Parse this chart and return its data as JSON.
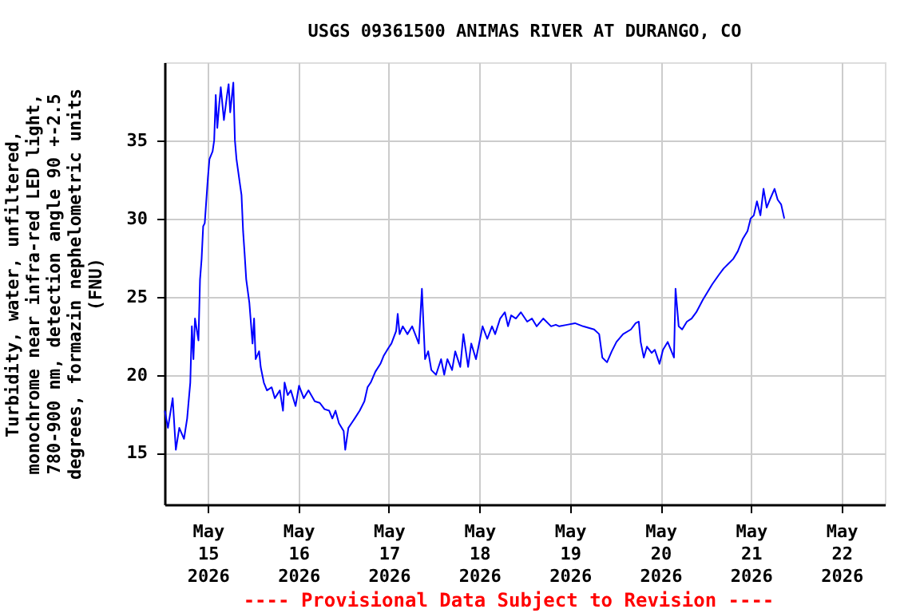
{
  "chart_data": {
    "type": "line",
    "title": "USGS 09361500 ANIMAS RIVER AT DURANGO, CO",
    "ylabel": "Turbidity, water, unfiltered,\nmonochrome near infra-red LED light,\n780-900 nm, detection angle 90 +-2.5\ndegrees, formazin nephelometric units\n(FNU)",
    "annotations": [
      "---- Provisional Data Subject to Revision ----"
    ],
    "x": [
      "2026-05-14T12:35",
      "2026-05-14T13:25",
      "2026-05-14T14:40",
      "2026-05-14T15:30",
      "2026-05-14T16:25",
      "2026-05-14T17:40",
      "2026-05-14T18:30",
      "2026-05-14T19:20",
      "2026-05-14T19:45",
      "2026-05-14T20:10",
      "2026-05-14T20:35",
      "2026-05-14T21:30",
      "2026-05-14T21:55",
      "2026-05-14T22:20",
      "2026-05-14T22:45",
      "2026-05-14T23:10",
      "2026-05-15T00:00",
      "2026-05-15T00:25",
      "2026-05-15T01:15",
      "2026-05-15T01:40",
      "2026-05-15T02:05",
      "2026-05-15T02:30",
      "2026-05-15T03:00",
      "2026-05-15T03:25",
      "2026-05-15T04:15",
      "2026-05-15T05:05",
      "2026-05-15T05:30",
      "2026-05-15T05:55",
      "2026-05-15T06:45",
      "2026-05-15T07:10",
      "2026-05-15T07:35",
      "2026-05-15T08:30",
      "2026-05-15T08:55",
      "2026-05-15T09:20",
      "2026-05-15T09:45",
      "2026-05-15T10:10",
      "2026-05-15T11:00",
      "2026-05-15T11:50",
      "2026-05-15T12:15",
      "2026-05-15T12:40",
      "2026-05-15T13:35",
      "2026-05-15T14:00",
      "2026-05-15T14:50",
      "2026-05-15T15:40",
      "2026-05-15T16:55",
      "2026-05-15T17:45",
      "2026-05-15T19:05",
      "2026-05-15T19:55",
      "2026-05-15T20:20",
      "2026-05-15T21:10",
      "2026-05-15T22:00",
      "2026-05-15T23:15",
      "2026-05-16T00:10",
      "2026-05-16T01:25",
      "2026-05-16T02:40",
      "2026-05-16T04:20",
      "2026-05-16T05:40",
      "2026-05-16T06:55",
      "2026-05-16T08:10",
      "2026-05-16T09:00",
      "2026-05-16T09:50",
      "2026-05-16T10:45",
      "2026-05-16T12:00",
      "2026-05-16T12:25",
      "2026-05-16T13:15",
      "2026-05-16T14:05",
      "2026-05-16T14:55",
      "2026-05-16T16:15",
      "2026-05-16T17:30",
      "2026-05-16T18:20",
      "2026-05-16T19:10",
      "2026-05-16T20:25",
      "2026-05-16T21:45",
      "2026-05-16T22:35",
      "2026-05-16T23:50",
      "2026-05-17T00:40",
      "2026-05-17T01:55",
      "2026-05-17T02:20",
      "2026-05-17T02:50",
      "2026-05-17T03:40",
      "2026-05-17T04:55",
      "2026-05-17T06:10",
      "2026-05-17T07:55",
      "2026-05-17T08:45",
      "2026-05-17T09:35",
      "2026-05-17T10:25",
      "2026-05-17T11:15",
      "2026-05-17T12:30",
      "2026-05-17T13:50",
      "2026-05-17T14:40",
      "2026-05-17T15:30",
      "2026-05-17T16:45",
      "2026-05-17T17:35",
      "2026-05-17T18:55",
      "2026-05-17T19:45",
      "2026-05-17T21:00",
      "2026-05-17T21:50",
      "2026-05-17T23:05",
      "2026-05-17T23:55",
      "2026-05-18T00:50",
      "2026-05-18T02:05",
      "2026-05-18T03:20",
      "2026-05-18T04:10",
      "2026-05-18T05:30",
      "2026-05-18T06:45",
      "2026-05-18T07:35",
      "2026-05-18T08:25",
      "2026-05-18T09:40",
      "2026-05-18T11:00",
      "2026-05-18T12:40",
      "2026-05-18T13:55",
      "2026-05-18T15:10",
      "2026-05-18T16:55",
      "2026-05-18T19:00",
      "2026-05-18T20:15",
      "2026-05-18T21:10",
      "2026-05-18T23:15",
      "2026-05-19T01:20",
      "2026-05-19T03:30",
      "2026-05-19T06:25",
      "2026-05-19T07:45",
      "2026-05-19T08:35",
      "2026-05-19T09:50",
      "2026-05-19T11:05",
      "2026-05-19T12:20",
      "2026-05-19T14:05",
      "2026-05-19T16:10",
      "2026-05-19T17:25",
      "2026-05-19T18:15",
      "2026-05-19T18:45",
      "2026-05-19T19:35",
      "2026-05-19T20:25",
      "2026-05-19T21:40",
      "2026-05-19T22:30",
      "2026-05-19T23:45",
      "2026-05-20T00:40",
      "2026-05-20T01:55",
      "2026-05-20T02:45",
      "2026-05-20T03:35",
      "2026-05-20T04:00",
      "2026-05-20T04:50",
      "2026-05-20T05:45",
      "2026-05-20T07:00",
      "2026-05-20T08:15",
      "2026-05-20T09:30",
      "2026-05-20T11:15",
      "2026-05-20T12:30",
      "2026-05-20T13:45",
      "2026-05-20T15:30",
      "2026-05-20T16:45",
      "2026-05-20T18:00",
      "2026-05-20T19:15",
      "2026-05-20T20:30",
      "2026-05-20T21:50",
      "2026-05-20T23:05",
      "2026-05-20T23:55",
      "2026-05-21T00:45",
      "2026-05-21T01:35",
      "2026-05-21T02:30",
      "2026-05-21T03:20",
      "2026-05-21T04:10",
      "2026-05-21T05:00",
      "2026-05-21T06:15",
      "2026-05-21T07:05",
      "2026-05-21T08:00",
      "2026-05-21T08:50"
    ],
    "series": [
      {
        "color": "#0000ff",
        "values": [
          17.7,
          16.6,
          18.5,
          15.2,
          16.6,
          15.9,
          17.2,
          19.5,
          23.1,
          21.0,
          23.6,
          22.2,
          26.1,
          27.4,
          29.5,
          29.7,
          32.6,
          33.8,
          34.3,
          35.0,
          37.9,
          35.8,
          37.3,
          38.4,
          36.3,
          37.9,
          38.6,
          36.8,
          38.7,
          35.0,
          33.8,
          32.2,
          31.5,
          29.2,
          27.7,
          26.1,
          24.6,
          22.0,
          23.6,
          21.0,
          21.5,
          20.5,
          19.5,
          19.0,
          19.2,
          18.5,
          19.0,
          17.7,
          19.5,
          18.7,
          19.0,
          18.0,
          19.3,
          18.5,
          19.0,
          18.3,
          18.2,
          17.8,
          17.7,
          17.2,
          17.7,
          16.9,
          16.4,
          15.2,
          16.6,
          16.9,
          17.2,
          17.7,
          18.3,
          19.2,
          19.5,
          20.2,
          20.7,
          21.2,
          21.7,
          22.0,
          22.8,
          23.9,
          22.6,
          23.1,
          22.6,
          23.1,
          22.0,
          25.5,
          21.0,
          21.5,
          20.3,
          20.0,
          21.0,
          20.0,
          21.0,
          20.3,
          21.5,
          20.5,
          22.6,
          20.5,
          22.0,
          21.0,
          22.0,
          23.1,
          22.3,
          23.1,
          22.6,
          23.6,
          24.0,
          23.1,
          23.8,
          23.6,
          24.0,
          23.4,
          23.6,
          23.1,
          23.6,
          23.1,
          23.2,
          23.1,
          23.2,
          23.3,
          23.1,
          22.9,
          22.6,
          21.1,
          20.8,
          21.5,
          22.1,
          22.6,
          22.9,
          23.3,
          23.4,
          22.1,
          21.1,
          21.8,
          21.4,
          21.6,
          20.7,
          21.6,
          22.1,
          21.6,
          21.1,
          25.5,
          23.1,
          22.9,
          23.4,
          23.6,
          24.0,
          24.8,
          25.3,
          25.8,
          26.4,
          26.8,
          27.1,
          27.4,
          27.9,
          28.7,
          29.2,
          30.0,
          30.2,
          31.1,
          30.2,
          31.9,
          30.7,
          31.2,
          31.9,
          31.2,
          30.9,
          30.0
        ]
      }
    ],
    "xlim": [
      "2026-05-14T12:30",
      "2026-05-22T11:30"
    ],
    "xticks": [
      {
        "value": "2026-05-15",
        "label": "May\n15\n2026"
      },
      {
        "value": "2026-05-16",
        "label": "May\n16\n2026"
      },
      {
        "value": "2026-05-17",
        "label": "May\n17\n2026"
      },
      {
        "value": "2026-05-18",
        "label": "May\n18\n2026"
      },
      {
        "value": "2026-05-19",
        "label": "May\n19\n2026"
      },
      {
        "value": "2026-05-20",
        "label": "May\n20\n2026"
      },
      {
        "value": "2026-05-21",
        "label": "May\n21\n2026"
      },
      {
        "value": "2026-05-22",
        "label": "May\n22\n2026"
      }
    ],
    "ylim": [
      11.7,
      40.0
    ],
    "yticks": [
      15,
      20,
      25,
      30,
      35
    ],
    "grid": true,
    "marker": "none",
    "line_style": "solid"
  }
}
